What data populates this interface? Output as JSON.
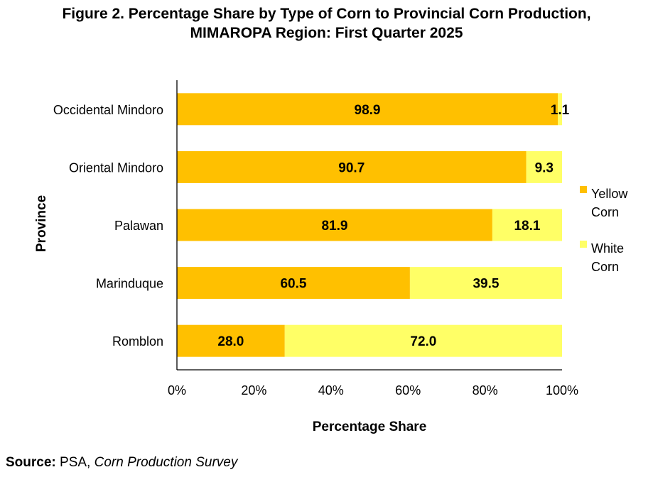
{
  "title": {
    "line1": "Figure 2. Percentage Share by Type of Corn to Provincial Corn Production,",
    "line2": "MIMAROPA Region: First Quarter 2025"
  },
  "source": {
    "label": "Source:",
    "org": "PSA,",
    "survey": "Corn Production Survey"
  },
  "chart_data": {
    "type": "bar",
    "orientation": "horizontal",
    "stacked": true,
    "categories": [
      "Occidental Mindoro",
      "Oriental Mindoro",
      "Palawan",
      "Marinduque",
      "Romblon"
    ],
    "series": [
      {
        "name": "Yellow Corn",
        "color": "#FFC000",
        "values": [
          98.9,
          90.7,
          81.9,
          60.5,
          28.0
        ],
        "labels": [
          "98.9",
          "90.7",
          "81.9",
          "60.5",
          "28.0"
        ]
      },
      {
        "name": "White Corn",
        "color": "#FFFF66",
        "values": [
          1.1,
          9.3,
          18.1,
          39.5,
          72.0
        ],
        "labels": [
          "1.1",
          "9.3",
          "18.1",
          "39.5",
          "72.0"
        ]
      }
    ],
    "legend_lines": [
      [
        "Yellow",
        "Corn"
      ],
      [
        "White",
        "Corn"
      ]
    ],
    "xlabel": "Percentage Share",
    "ylabel": "Province",
    "xlim": [
      0,
      100
    ],
    "xticks": [
      "0%",
      "20%",
      "40%",
      "60%",
      "80%",
      "100%"
    ],
    "grid": false,
    "legend_position": "right"
  }
}
